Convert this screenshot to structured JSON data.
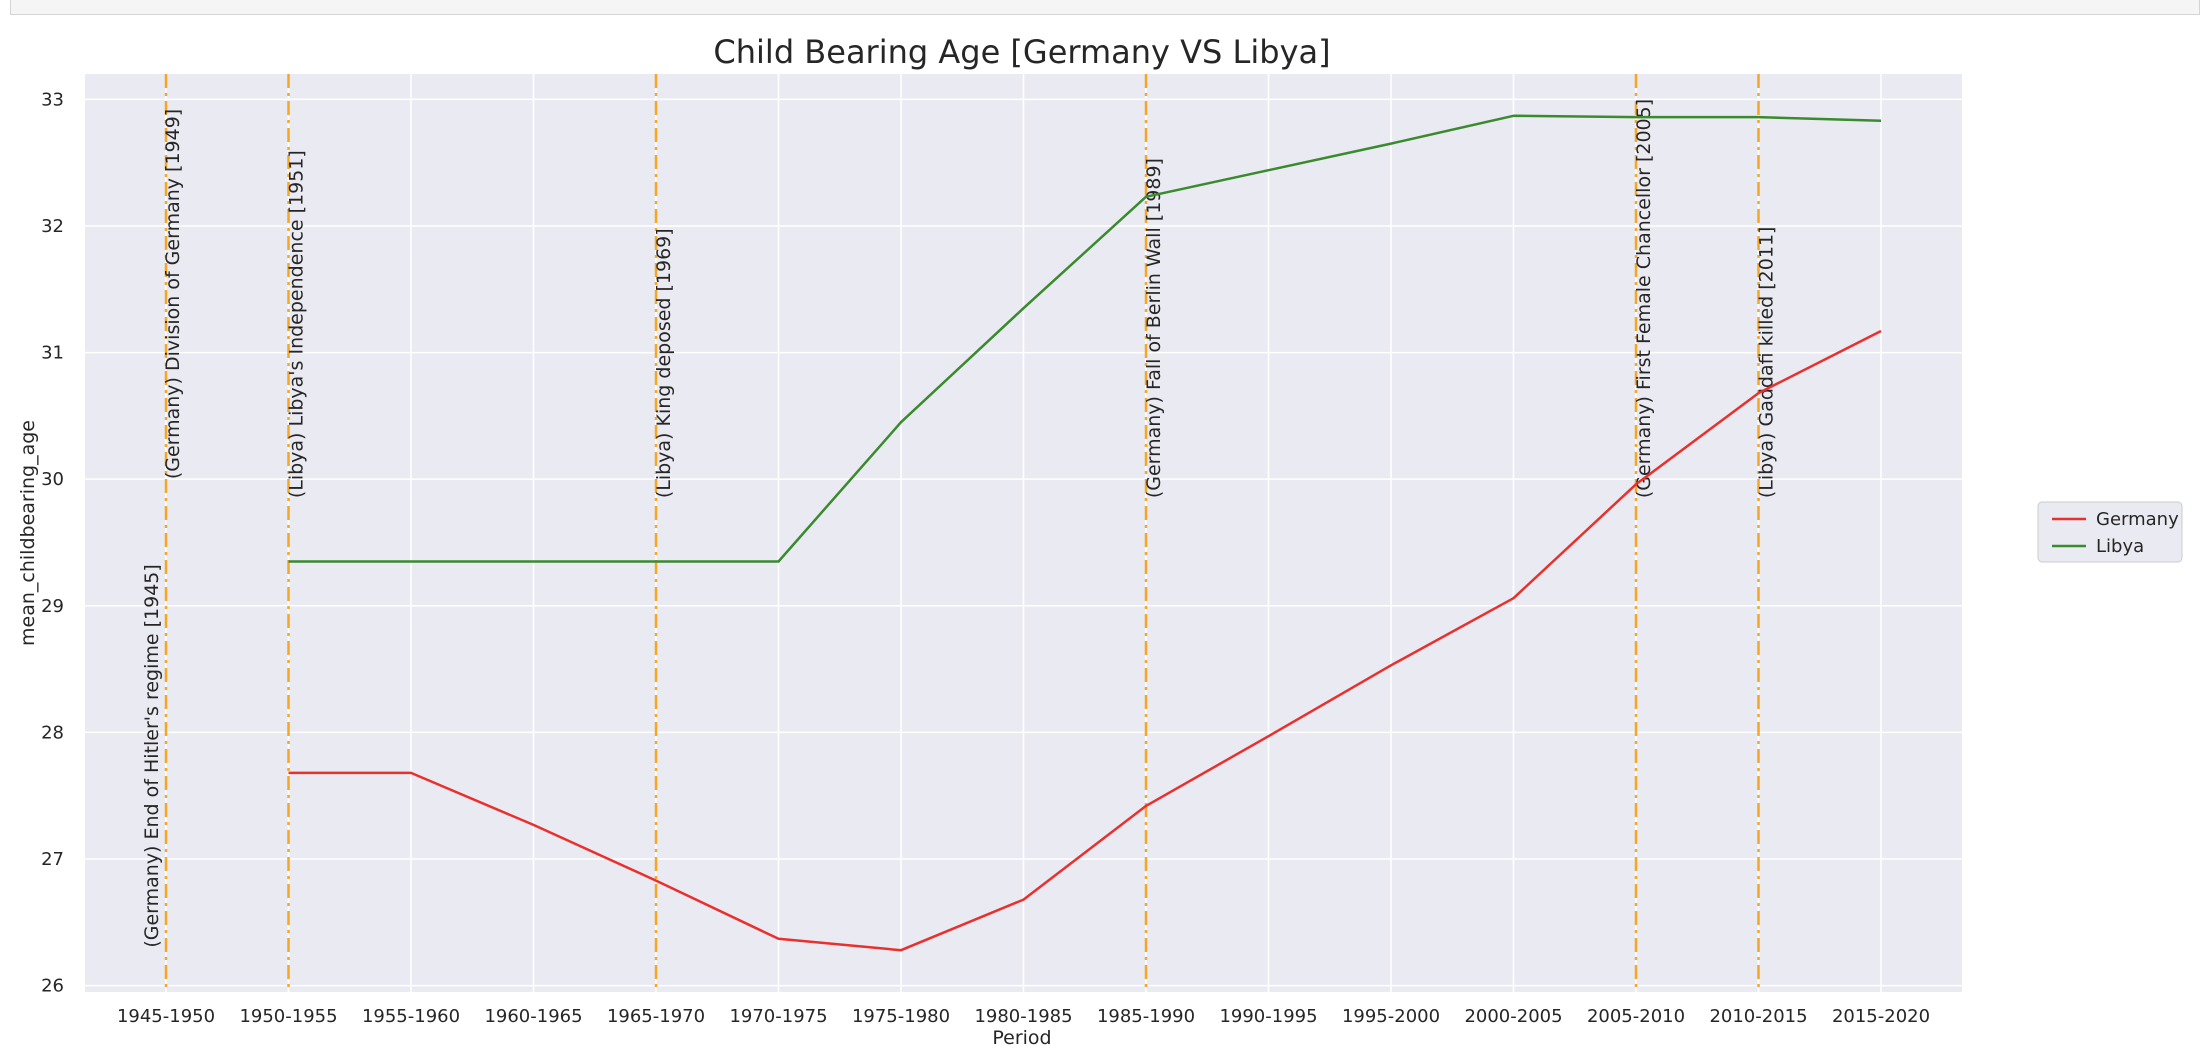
{
  "colors": {
    "plot_bg": "#eaeaf2",
    "grid": "#ffffff",
    "germany": "#e8302e",
    "libya": "#3a8a2e",
    "event_line": "#f5a623"
  },
  "chart_data": {
    "type": "line",
    "title": "Child Bearing Age [Germany VS Libya]",
    "xlabel": "Period",
    "ylabel": "mean_childbearing_age",
    "categories": [
      "1945-1950",
      "1950-1955",
      "1955-1960",
      "1960-1965",
      "1965-1970",
      "1970-1975",
      "1975-1980",
      "1980-1985",
      "1985-1990",
      "1990-1995",
      "1995-2000",
      "2000-2005",
      "2005-2010",
      "2010-2015",
      "2015-2020"
    ],
    "ylim": [
      25.95,
      33.2
    ],
    "yticks": [
      26,
      27,
      28,
      29,
      30,
      31,
      32,
      33
    ],
    "grid": true,
    "legend_position": "right",
    "series": [
      {
        "name": "Germany",
        "color_key": "germany",
        "values": [
          null,
          27.68,
          27.68,
          27.27,
          26.83,
          26.37,
          26.28,
          26.68,
          27.42,
          27.97,
          28.53,
          29.06,
          29.96,
          30.68,
          31.17
        ]
      },
      {
        "name": "Libya",
        "color_key": "libya",
        "values": [
          null,
          29.35,
          29.35,
          29.35,
          29.35,
          29.35,
          30.45,
          31.35,
          32.23,
          32.44,
          32.65,
          32.87,
          32.86,
          32.86,
          32.83
        ]
      }
    ],
    "events": [
      {
        "category_index": 0,
        "label": "(Germany) End of Hitler's regime [1945]",
        "anchor": "bottom"
      },
      {
        "category_index": 0,
        "label": "(Germany) Division of Germany [1949]",
        "anchor": "top"
      },
      {
        "category_index": 1,
        "label": "(Libya) Libya's Independence [1951]",
        "anchor": "top"
      },
      {
        "category_index": 4,
        "label": "(Libya) King deposed [1969]",
        "anchor": "top"
      },
      {
        "category_index": 8,
        "label": "(Germany) Fall of Berlin Wall [1989]",
        "anchor": "top"
      },
      {
        "category_index": 12,
        "label": "(Germany) First Female Chancellor [2005]",
        "anchor": "top"
      },
      {
        "category_index": 13,
        "label": "(Libya) Gaddafi killed [2011]",
        "anchor": "top"
      }
    ]
  }
}
